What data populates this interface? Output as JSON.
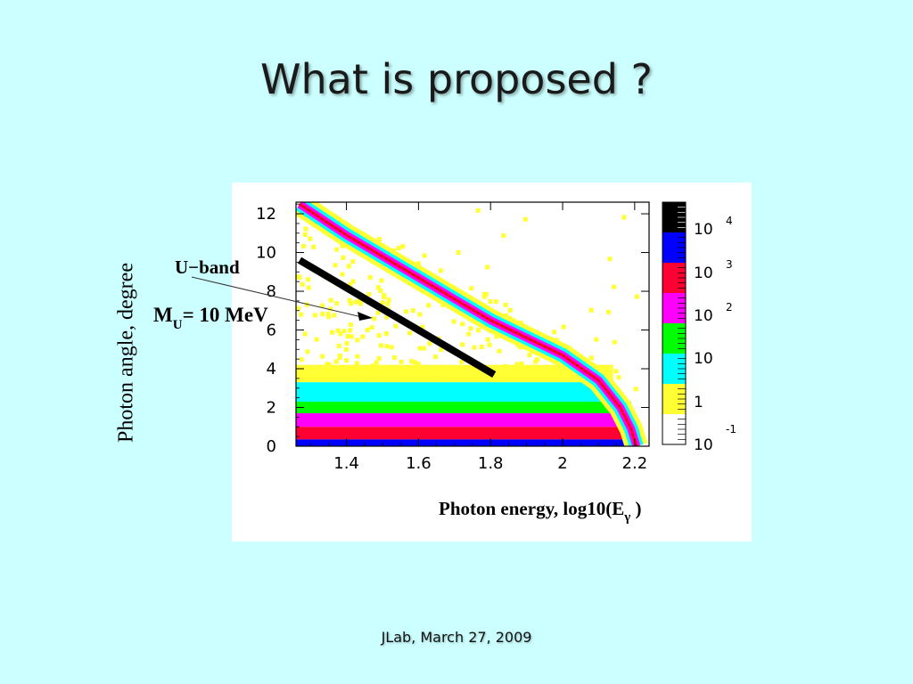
{
  "slide": {
    "title": "What is proposed ?",
    "footer": "JLab, March 27, 2009",
    "y_axis_label": "Photon angle, degree"
  },
  "chart_data": {
    "type": "heatmap",
    "x_axis": {
      "label_main": "Photon energy, log10(E",
      "label_sub": "γ",
      "label_close": " )",
      "range": [
        1.26,
        2.24
      ],
      "ticks": [
        1.4,
        1.6,
        1.8,
        2.0,
        2.2
      ],
      "tick_labels": [
        "1.4",
        "1.6",
        "1.8",
        "2",
        "2.2"
      ]
    },
    "y_axis": {
      "label": "Photon angle, degree",
      "range": [
        0,
        12.6
      ],
      "ticks": [
        0,
        2,
        4,
        6,
        8,
        10,
        12
      ],
      "tick_labels": [
        "0",
        "2",
        "4",
        "6",
        "8",
        "10",
        "12"
      ]
    },
    "color_scale": {
      "log": true,
      "entries": [
        {
          "base": "10",
          "exp": "4"
        },
        {
          "base": "10",
          "exp": "3"
        },
        {
          "base": "10",
          "exp": "2"
        },
        {
          "base": "10",
          "exp": ""
        },
        {
          "base": "1",
          "exp": ""
        },
        {
          "base": "10",
          "exp": "-1"
        }
      ],
      "colors": [
        "#000000",
        "#0000ff",
        "#ff0033",
        "#ff00ff",
        "#00ff00",
        "#00ffff",
        "#ffff33",
        "#ffffff"
      ]
    },
    "horizontal_bands": [
      {
        "y0": 0.0,
        "y1": 0.35,
        "color": "#0000ff"
      },
      {
        "y0": 0.35,
        "y1": 1.0,
        "color": "#ff0033"
      },
      {
        "y0": 1.0,
        "y1": 1.7,
        "color": "#ff00ff"
      },
      {
        "y0": 1.7,
        "y1": 2.3,
        "color": "#00ff00"
      },
      {
        "y0": 2.3,
        "y1": 3.3,
        "color": "#00ffff"
      },
      {
        "y0": 3.3,
        "y1": 4.2,
        "color": "#ffff33"
      }
    ],
    "kinematic_curve": {
      "x": [
        1.27,
        1.4,
        1.6,
        1.8,
        2.0,
        2.1,
        2.16,
        2.19,
        2.205
      ],
      "y": [
        12.5,
        10.9,
        8.7,
        6.5,
        4.7,
        3.4,
        2.0,
        0.9,
        0.0
      ]
    },
    "u_band": {
      "label": "U−band",
      "mass_label_main": "M",
      "mass_label_sub": "U",
      "mass_label_rest": "= 10 MeV",
      "x": [
        1.27,
        1.81
      ],
      "y": [
        9.6,
        3.7
      ]
    }
  }
}
